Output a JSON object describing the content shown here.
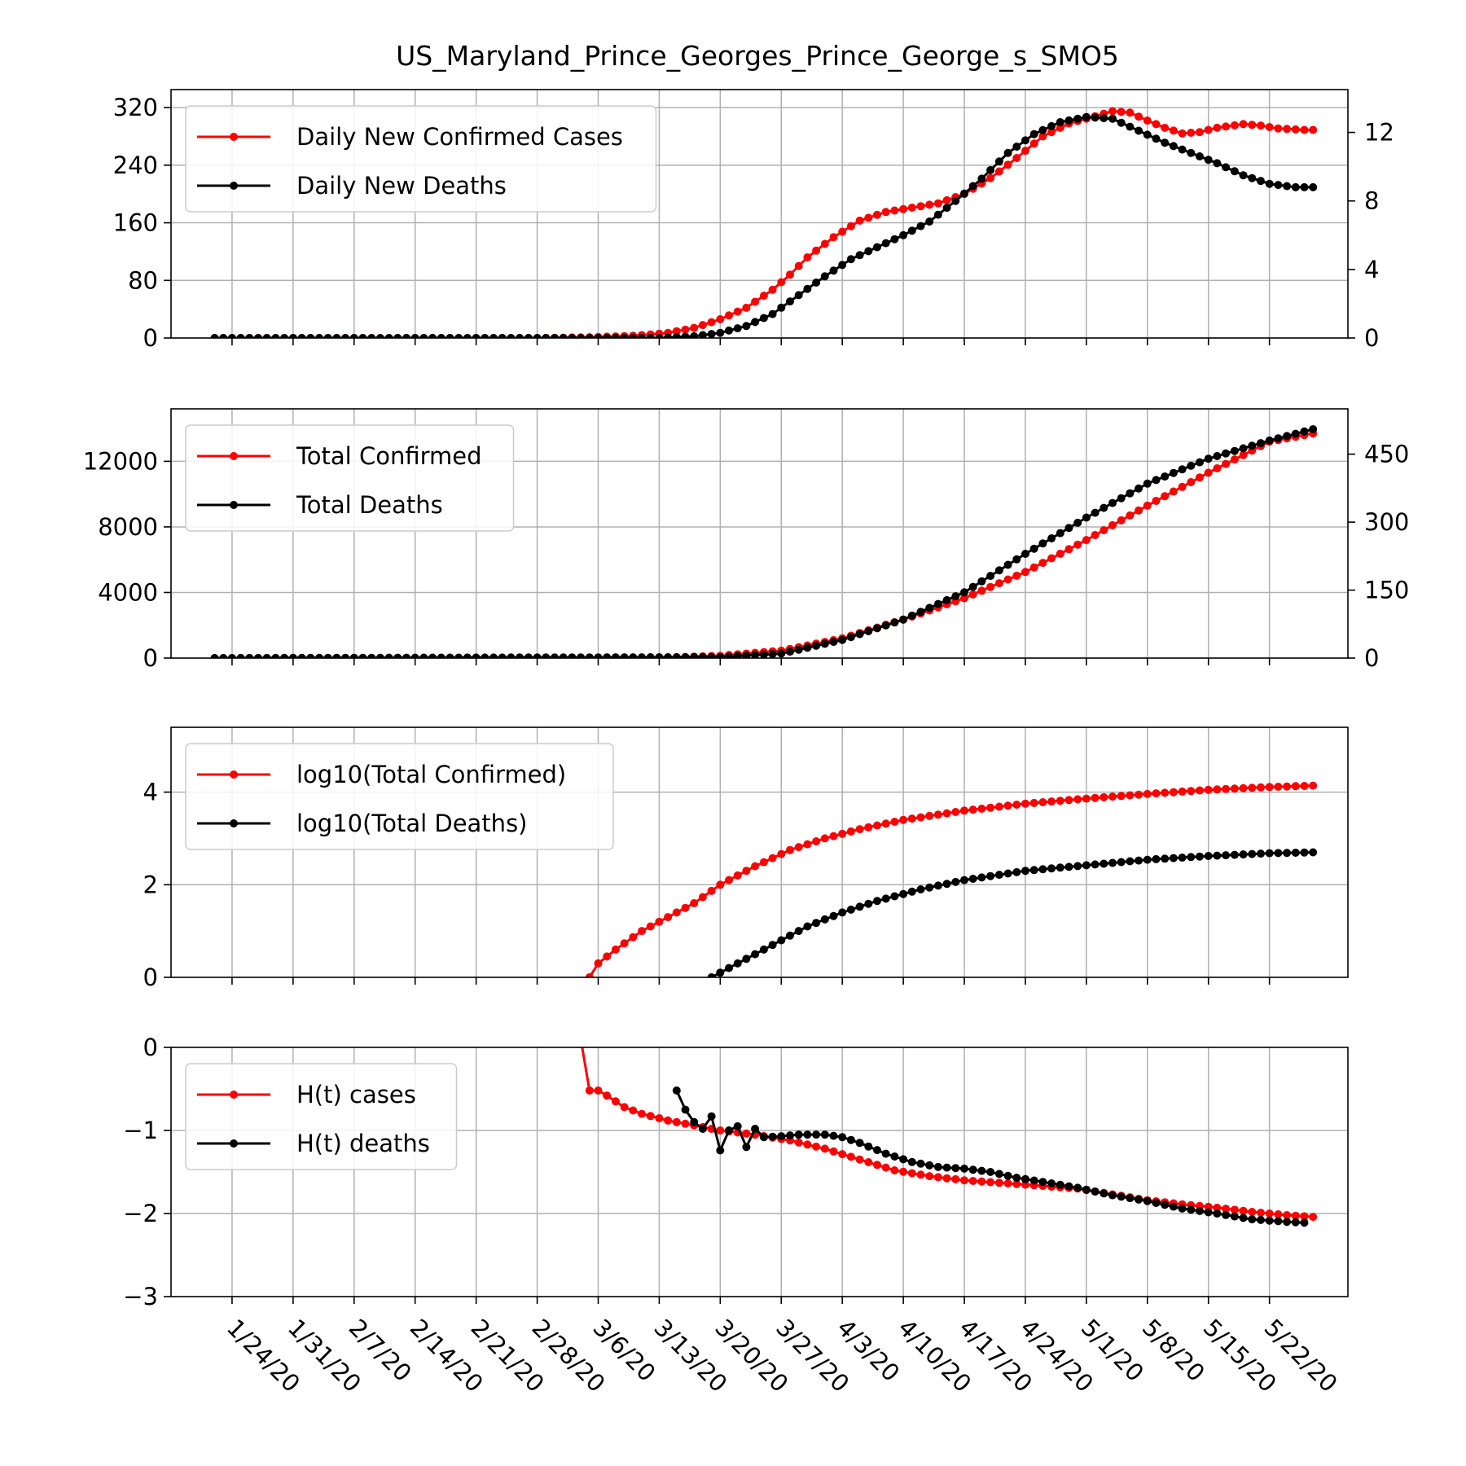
{
  "figure": {
    "title": "US_Maryland_Prince_Georges_Prince_George_s_SMO5"
  },
  "colors": {
    "cases": "#ff0000",
    "deaths": "#000000",
    "grid": "#b0b0b0",
    "axis": "#000000"
  },
  "chart_data": [
    {
      "type": "line",
      "title": "US_Maryland_Prince_Georges_Prince_George_s_SMO5",
      "x_ticks": [
        "1/24/20",
        "1/31/20",
        "2/7/20",
        "2/14/20",
        "2/21/20",
        "2/28/20",
        "3/6/20",
        "3/13/20",
        "3/20/20",
        "3/27/20",
        "4/3/20",
        "4/10/20",
        "4/17/20",
        "4/24/20",
        "5/1/20",
        "5/8/20",
        "5/15/20",
        "5/22/20"
      ],
      "x_range": [
        "1/17/20",
        "5/31/20"
      ],
      "ylim": [
        0,
        345
      ],
      "y_ticks": [
        0,
        80,
        160,
        240,
        320
      ],
      "y2lim": [
        0,
        14.5
      ],
      "y2_ticks": [
        0,
        4,
        8,
        12
      ],
      "grid": true,
      "legend": "upper left",
      "series": [
        {
          "name": "Daily New Confirmed Cases",
          "axis": "left",
          "color": "#ff0000",
          "points": [
            [
              "1/22/20",
              0
            ],
            [
              "2/28/20",
              0
            ],
            [
              "3/5/20",
              1
            ],
            [
              "3/10/20",
              3
            ],
            [
              "3/14/20",
              7
            ],
            [
              "3/17/20",
              14
            ],
            [
              "3/20/20",
              26
            ],
            [
              "3/23/20",
              42
            ],
            [
              "3/26/20",
              67
            ],
            [
              "3/28/20",
              88
            ],
            [
              "3/30/20",
              112
            ],
            [
              "4/2/20",
              140
            ],
            [
              "4/5/20",
              163
            ],
            [
              "4/8/20",
              175
            ],
            [
              "4/11/20",
              181
            ],
            [
              "4/14/20",
              187
            ],
            [
              "4/17/20",
              200
            ],
            [
              "4/20/20",
              222
            ],
            [
              "4/23/20",
              250
            ],
            [
              "4/26/20",
              280
            ],
            [
              "4/29/20",
              298
            ],
            [
              "5/2/20",
              308
            ],
            [
              "5/4/20",
              315
            ],
            [
              "5/6/20",
              313
            ],
            [
              "5/8/20",
              302
            ],
            [
              "5/10/20",
              292
            ],
            [
              "5/12/20",
              284
            ],
            [
              "5/14/20",
              286
            ],
            [
              "5/16/20",
              292
            ],
            [
              "5/19/20",
              297
            ],
            [
              "5/21/20",
              295
            ],
            [
              "5/23/20",
              291
            ],
            [
              "5/26/20",
              289
            ],
            [
              "5/27/20",
              289
            ]
          ]
        },
        {
          "name": "Daily New Deaths",
          "axis": "right",
          "color": "#000000",
          "points": [
            [
              "1/22/20",
              0
            ],
            [
              "3/13/20",
              0
            ],
            [
              "3/17/20",
              0.1
            ],
            [
              "3/20/20",
              0.3
            ],
            [
              "3/23/20",
              0.7
            ],
            [
              "3/26/20",
              1.4
            ],
            [
              "3/29/20",
              2.5
            ],
            [
              "4/1/20",
              3.6
            ],
            [
              "4/4/20",
              4.6
            ],
            [
              "4/7/20",
              5.3
            ],
            [
              "4/10/20",
              6.0
            ],
            [
              "4/13/20",
              6.8
            ],
            [
              "4/16/20",
              8.0
            ],
            [
              "4/19/20",
              9.3
            ],
            [
              "4/22/20",
              10.8
            ],
            [
              "4/25/20",
              11.9
            ],
            [
              "4/28/20",
              12.6
            ],
            [
              "5/1/20",
              12.9
            ],
            [
              "5/4/20",
              12.8
            ],
            [
              "5/7/20",
              12.1
            ],
            [
              "5/10/20",
              11.4
            ],
            [
              "5/13/20",
              10.8
            ],
            [
              "5/16/20",
              10.2
            ],
            [
              "5/19/20",
              9.5
            ],
            [
              "5/22/20",
              9.0
            ],
            [
              "5/25/20",
              8.8
            ],
            [
              "5/27/20",
              8.8
            ]
          ]
        }
      ]
    },
    {
      "type": "line",
      "ylim": [
        0,
        15200
      ],
      "y_ticks": [
        0,
        4000,
        8000,
        12000
      ],
      "y2lim": [
        0,
        550
      ],
      "y2_ticks": [
        0,
        150,
        300,
        450
      ],
      "grid": true,
      "legend": "upper left",
      "series": [
        {
          "name": "Total Confirmed",
          "axis": "left",
          "color": "#ff0000",
          "points": [
            [
              "1/22/20",
              0
            ],
            [
              "3/13/20",
              20
            ],
            [
              "3/20/20",
              140
            ],
            [
              "3/27/20",
              450
            ],
            [
              "4/3/20",
              1200
            ],
            [
              "4/10/20",
              2350
            ],
            [
              "4/17/20",
              3650
            ],
            [
              "4/24/20",
              5250
            ],
            [
              "5/1/20",
              7200
            ],
            [
              "5/8/20",
              9300
            ],
            [
              "5/15/20",
              11300
            ],
            [
              "5/22/20",
              13200
            ],
            [
              "5/27/20",
              13700
            ]
          ]
        },
        {
          "name": "Total Deaths",
          "axis": "right",
          "color": "#000000",
          "points": [
            [
              "1/22/20",
              0
            ],
            [
              "3/20/20",
              2
            ],
            [
              "3/27/20",
              10
            ],
            [
              "4/3/20",
              40
            ],
            [
              "4/10/20",
              85
            ],
            [
              "4/17/20",
              145
            ],
            [
              "4/24/20",
              230
            ],
            [
              "5/1/20",
              310
            ],
            [
              "5/8/20",
              385
            ],
            [
              "5/15/20",
              440
            ],
            [
              "5/22/20",
              480
            ],
            [
              "5/27/20",
              505
            ]
          ]
        }
      ]
    },
    {
      "type": "line",
      "ylim": [
        0,
        5.4
      ],
      "y_ticks": [
        0,
        2,
        4
      ],
      "grid": true,
      "legend": "upper left",
      "series": [
        {
          "name": "log10(Total Confirmed)",
          "color": "#ff0000",
          "points": [
            [
              "3/5/20",
              0
            ],
            [
              "3/6/20",
              0.3
            ],
            [
              "3/8/20",
              0.6
            ],
            [
              "3/11/20",
              1.0
            ],
            [
              "3/14/20",
              1.3
            ],
            [
              "3/17/20",
              1.6
            ],
            [
              "3/20/20",
              2.0
            ],
            [
              "3/24/20",
              2.4
            ],
            [
              "3/28/20",
              2.75
            ],
            [
              "4/1/20",
              3.0
            ],
            [
              "4/5/20",
              3.2
            ],
            [
              "4/10/20",
              3.4
            ],
            [
              "4/17/20",
              3.6
            ],
            [
              "4/24/20",
              3.75
            ],
            [
              "5/1/20",
              3.86
            ],
            [
              "5/8/20",
              3.96
            ],
            [
              "5/15/20",
              4.05
            ],
            [
              "5/22/20",
              4.11
            ],
            [
              "5/27/20",
              4.14
            ]
          ]
        },
        {
          "name": "log10(Total Deaths)",
          "color": "#000000",
          "points": [
            [
              "3/19/20",
              0
            ],
            [
              "3/21/20",
              0.2
            ],
            [
              "3/23/20",
              0.4
            ],
            [
              "3/26/20",
              0.7
            ],
            [
              "3/30/20",
              1.1
            ],
            [
              "4/3/20",
              1.4
            ],
            [
              "4/7/20",
              1.65
            ],
            [
              "4/12/20",
              1.9
            ],
            [
              "4/17/20",
              2.1
            ],
            [
              "4/24/20",
              2.3
            ],
            [
              "5/1/20",
              2.42
            ],
            [
              "5/8/20",
              2.54
            ],
            [
              "5/15/20",
              2.62
            ],
            [
              "5/22/20",
              2.68
            ],
            [
              "5/27/20",
              2.7
            ]
          ]
        }
      ]
    },
    {
      "type": "line",
      "ylim": [
        -3,
        0
      ],
      "y_ticks": [
        0,
        -1,
        -2,
        -3
      ],
      "grid": true,
      "legend": "upper left",
      "series": [
        {
          "name": "H(t) cases",
          "color": "#ff0000",
          "points": [
            [
              "3/4/20",
              0.1
            ],
            [
              "3/5/20",
              -0.52
            ],
            [
              "3/6/20",
              -0.52
            ],
            [
              "3/7/20",
              -0.58
            ],
            [
              "3/9/20",
              -0.72
            ],
            [
              "3/11/20",
              -0.8
            ],
            [
              "3/14/20",
              -0.88
            ],
            [
              "3/17/20",
              -0.94
            ],
            [
              "3/20/20",
              -1.0
            ],
            [
              "3/24/20",
              -1.05
            ],
            [
              "3/28/20",
              -1.12
            ],
            [
              "4/1/20",
              -1.22
            ],
            [
              "4/5/20",
              -1.35
            ],
            [
              "4/9/20",
              -1.48
            ],
            [
              "4/13/20",
              -1.55
            ],
            [
              "4/17/20",
              -1.6
            ],
            [
              "4/21/20",
              -1.63
            ],
            [
              "4/25/20",
              -1.66
            ],
            [
              "4/30/20",
              -1.7
            ],
            [
              "5/4/20",
              -1.77
            ],
            [
              "5/8/20",
              -1.84
            ],
            [
              "5/12/20",
              -1.89
            ],
            [
              "5/16/20",
              -1.93
            ],
            [
              "5/20/20",
              -1.98
            ],
            [
              "5/24/20",
              -2.02
            ],
            [
              "5/27/20",
              -2.04
            ]
          ]
        },
        {
          "name": "H(t) deaths",
          "color": "#000000",
          "points": [
            [
              "3/15/20",
              -0.52
            ],
            [
              "3/16/20",
              -0.75
            ],
            [
              "3/17/20",
              -0.9
            ],
            [
              "3/18/20",
              -0.98
            ],
            [
              "3/19/20",
              -0.83
            ],
            [
              "3/20/20",
              -1.24
            ],
            [
              "3/21/20",
              -1.0
            ],
            [
              "3/22/20",
              -0.95
            ],
            [
              "3/23/20",
              -1.2
            ],
            [
              "3/24/20",
              -0.98
            ],
            [
              "3/25/20",
              -1.08
            ],
            [
              "3/27/20",
              -1.07
            ],
            [
              "3/29/20",
              -1.05
            ],
            [
              "4/1/20",
              -1.05
            ],
            [
              "4/3/20",
              -1.08
            ],
            [
              "4/5/20",
              -1.15
            ],
            [
              "4/8/20",
              -1.28
            ],
            [
              "4/11/20",
              -1.38
            ],
            [
              "4/14/20",
              -1.44
            ],
            [
              "4/17/20",
              -1.46
            ],
            [
              "4/20/20",
              -1.5
            ],
            [
              "4/23/20",
              -1.57
            ],
            [
              "4/26/20",
              -1.62
            ],
            [
              "4/30/20",
              -1.69
            ],
            [
              "5/4/20",
              -1.78
            ],
            [
              "5/8/20",
              -1.85
            ],
            [
              "5/12/20",
              -1.94
            ],
            [
              "5/16/20",
              -2.0
            ],
            [
              "5/20/20",
              -2.07
            ],
            [
              "5/24/20",
              -2.1
            ],
            [
              "5/26/20",
              -2.11
            ]
          ]
        }
      ]
    }
  ]
}
